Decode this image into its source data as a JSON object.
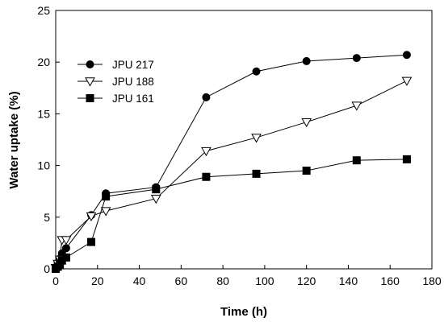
{
  "chart_data": {
    "type": "line",
    "xlabel": "Time (h)",
    "ylabel": "Water uptake (%)",
    "xlim": [
      0,
      180
    ],
    "ylim": [
      0,
      25
    ],
    "xticks": [
      0,
      20,
      40,
      60,
      80,
      100,
      120,
      140,
      160,
      180
    ],
    "yticks": [
      0,
      5,
      10,
      15,
      20,
      25
    ],
    "grid": false,
    "legend": "top-left",
    "series": [
      {
        "name": "JPU 217",
        "marker": "circle",
        "fill": "#000000",
        "x": [
          0,
          1,
          2,
          3,
          5,
          17,
          24,
          48,
          72,
          96,
          120,
          144,
          168
        ],
        "y": [
          0.1,
          0.6,
          1.0,
          1.5,
          2.0,
          5.2,
          7.3,
          7.9,
          16.6,
          19.1,
          20.1,
          20.4,
          20.7
        ]
      },
      {
        "name": "JPU 188",
        "marker": "triangle-down",
        "fill": "#ffffff",
        "x": [
          0,
          1,
          2,
          3,
          5,
          17,
          24,
          48,
          72,
          96,
          120,
          144,
          168
        ],
        "y": [
          0.1,
          0.5,
          0.9,
          2.8,
          2.8,
          5.1,
          5.6,
          6.8,
          11.4,
          12.7,
          14.2,
          15.8,
          18.2
        ]
      },
      {
        "name": "JPU 161",
        "marker": "square",
        "fill": "#000000",
        "x": [
          0,
          1,
          2,
          3,
          5,
          17,
          24,
          48,
          72,
          96,
          120,
          144,
          168
        ],
        "y": [
          0.0,
          0.2,
          0.4,
          0.8,
          1.1,
          2.6,
          7.0,
          7.7,
          8.9,
          9.2,
          9.5,
          10.5,
          10.6
        ]
      }
    ]
  }
}
